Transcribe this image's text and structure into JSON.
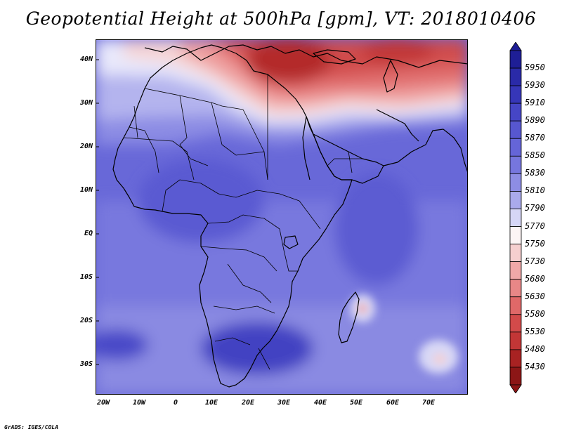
{
  "title": "Geopotential Height at 500hPa [gpm], VT: 2018010406",
  "footer": "GrADS: IGES/COLA",
  "map": {
    "lon_range": [
      -23,
      80
    ],
    "lat_range": [
      -37,
      45
    ],
    "lat_labels": [
      {
        "value": 40,
        "text": "40N"
      },
      {
        "value": 30,
        "text": "30N"
      },
      {
        "value": 20,
        "text": "20N"
      },
      {
        "value": 10,
        "text": "10N"
      },
      {
        "value": 0,
        "text": "EQ"
      },
      {
        "value": -10,
        "text": "10S"
      },
      {
        "value": -20,
        "text": "20S"
      },
      {
        "value": -30,
        "text": "30S"
      }
    ],
    "lon_labels": [
      {
        "value": -20,
        "text": "20W"
      },
      {
        "value": -10,
        "text": "10W"
      },
      {
        "value": 0,
        "text": "0"
      },
      {
        "value": 10,
        "text": "10E"
      },
      {
        "value": 20,
        "text": "20E"
      },
      {
        "value": 30,
        "text": "30E"
      },
      {
        "value": 40,
        "text": "40E"
      },
      {
        "value": 50,
        "text": "50E"
      },
      {
        "value": 60,
        "text": "60E"
      },
      {
        "value": 70,
        "text": "70E"
      }
    ]
  },
  "colorbar": {
    "levels": [
      "5950",
      "5930",
      "5910",
      "5890",
      "5870",
      "5850",
      "5830",
      "5810",
      "5790",
      "5770",
      "5750",
      "5730",
      "5680",
      "5630",
      "5580",
      "5530",
      "5480",
      "5430"
    ],
    "colors": [
      "#1e1e96",
      "#2a2aa8",
      "#3636b8",
      "#4646c6",
      "#5757d0",
      "#6565d8",
      "#7676de",
      "#8d8de4",
      "#aaaaec",
      "#d6d6f6",
      "#fdf5f5",
      "#f6cfcf",
      "#f0a8a8",
      "#e88787",
      "#e06868",
      "#d34a4a",
      "#c23636",
      "#a82222",
      "#8c1616"
    ]
  },
  "chart_data": {
    "type": "heatmap",
    "title": "Geopotential Height at 500hPa [gpm], VT: 2018010406",
    "variable": "Geopotential Height at 500hPa",
    "units": "gpm",
    "valid_time": "2018010406",
    "xlabel": "",
    "ylabel": "",
    "xlim": [
      -23,
      80
    ],
    "ylim": [
      -37,
      45
    ],
    "x_ticks": [
      "20W",
      "10W",
      "0",
      "10E",
      "20E",
      "30E",
      "40E",
      "50E",
      "60E",
      "70E"
    ],
    "y_ticks": [
      "40N",
      "30N",
      "20N",
      "10N",
      "EQ",
      "10S",
      "20S",
      "30S"
    ],
    "color_levels": [
      5430,
      5480,
      5530,
      5580,
      5630,
      5680,
      5730,
      5750,
      5770,
      5790,
      5810,
      5830,
      5850,
      5870,
      5890,
      5910,
      5930,
      5950
    ],
    "approx_regions": [
      {
        "region": "Eastern Mediterranean / Turkey",
        "value": 5480
      },
      {
        "region": "Persian Gulf / Iran",
        "value": 5530
      },
      {
        "region": "North Africa coast (~32N)",
        "value": 5790
      },
      {
        "region": "Sahel / West Africa",
        "value": 5860
      },
      {
        "region": "Equatorial Africa",
        "value": 5860
      },
      {
        "region": "Southern Atlantic (25S, 20W)",
        "value": 5880
      },
      {
        "region": "Kalahari / South Africa",
        "value": 5890
      },
      {
        "region": "Madagascar east (17S, 52E)",
        "value": 5760
      },
      {
        "region": "Southern Indian Ocean (30S, 71E)",
        "value": 5750
      }
    ]
  }
}
